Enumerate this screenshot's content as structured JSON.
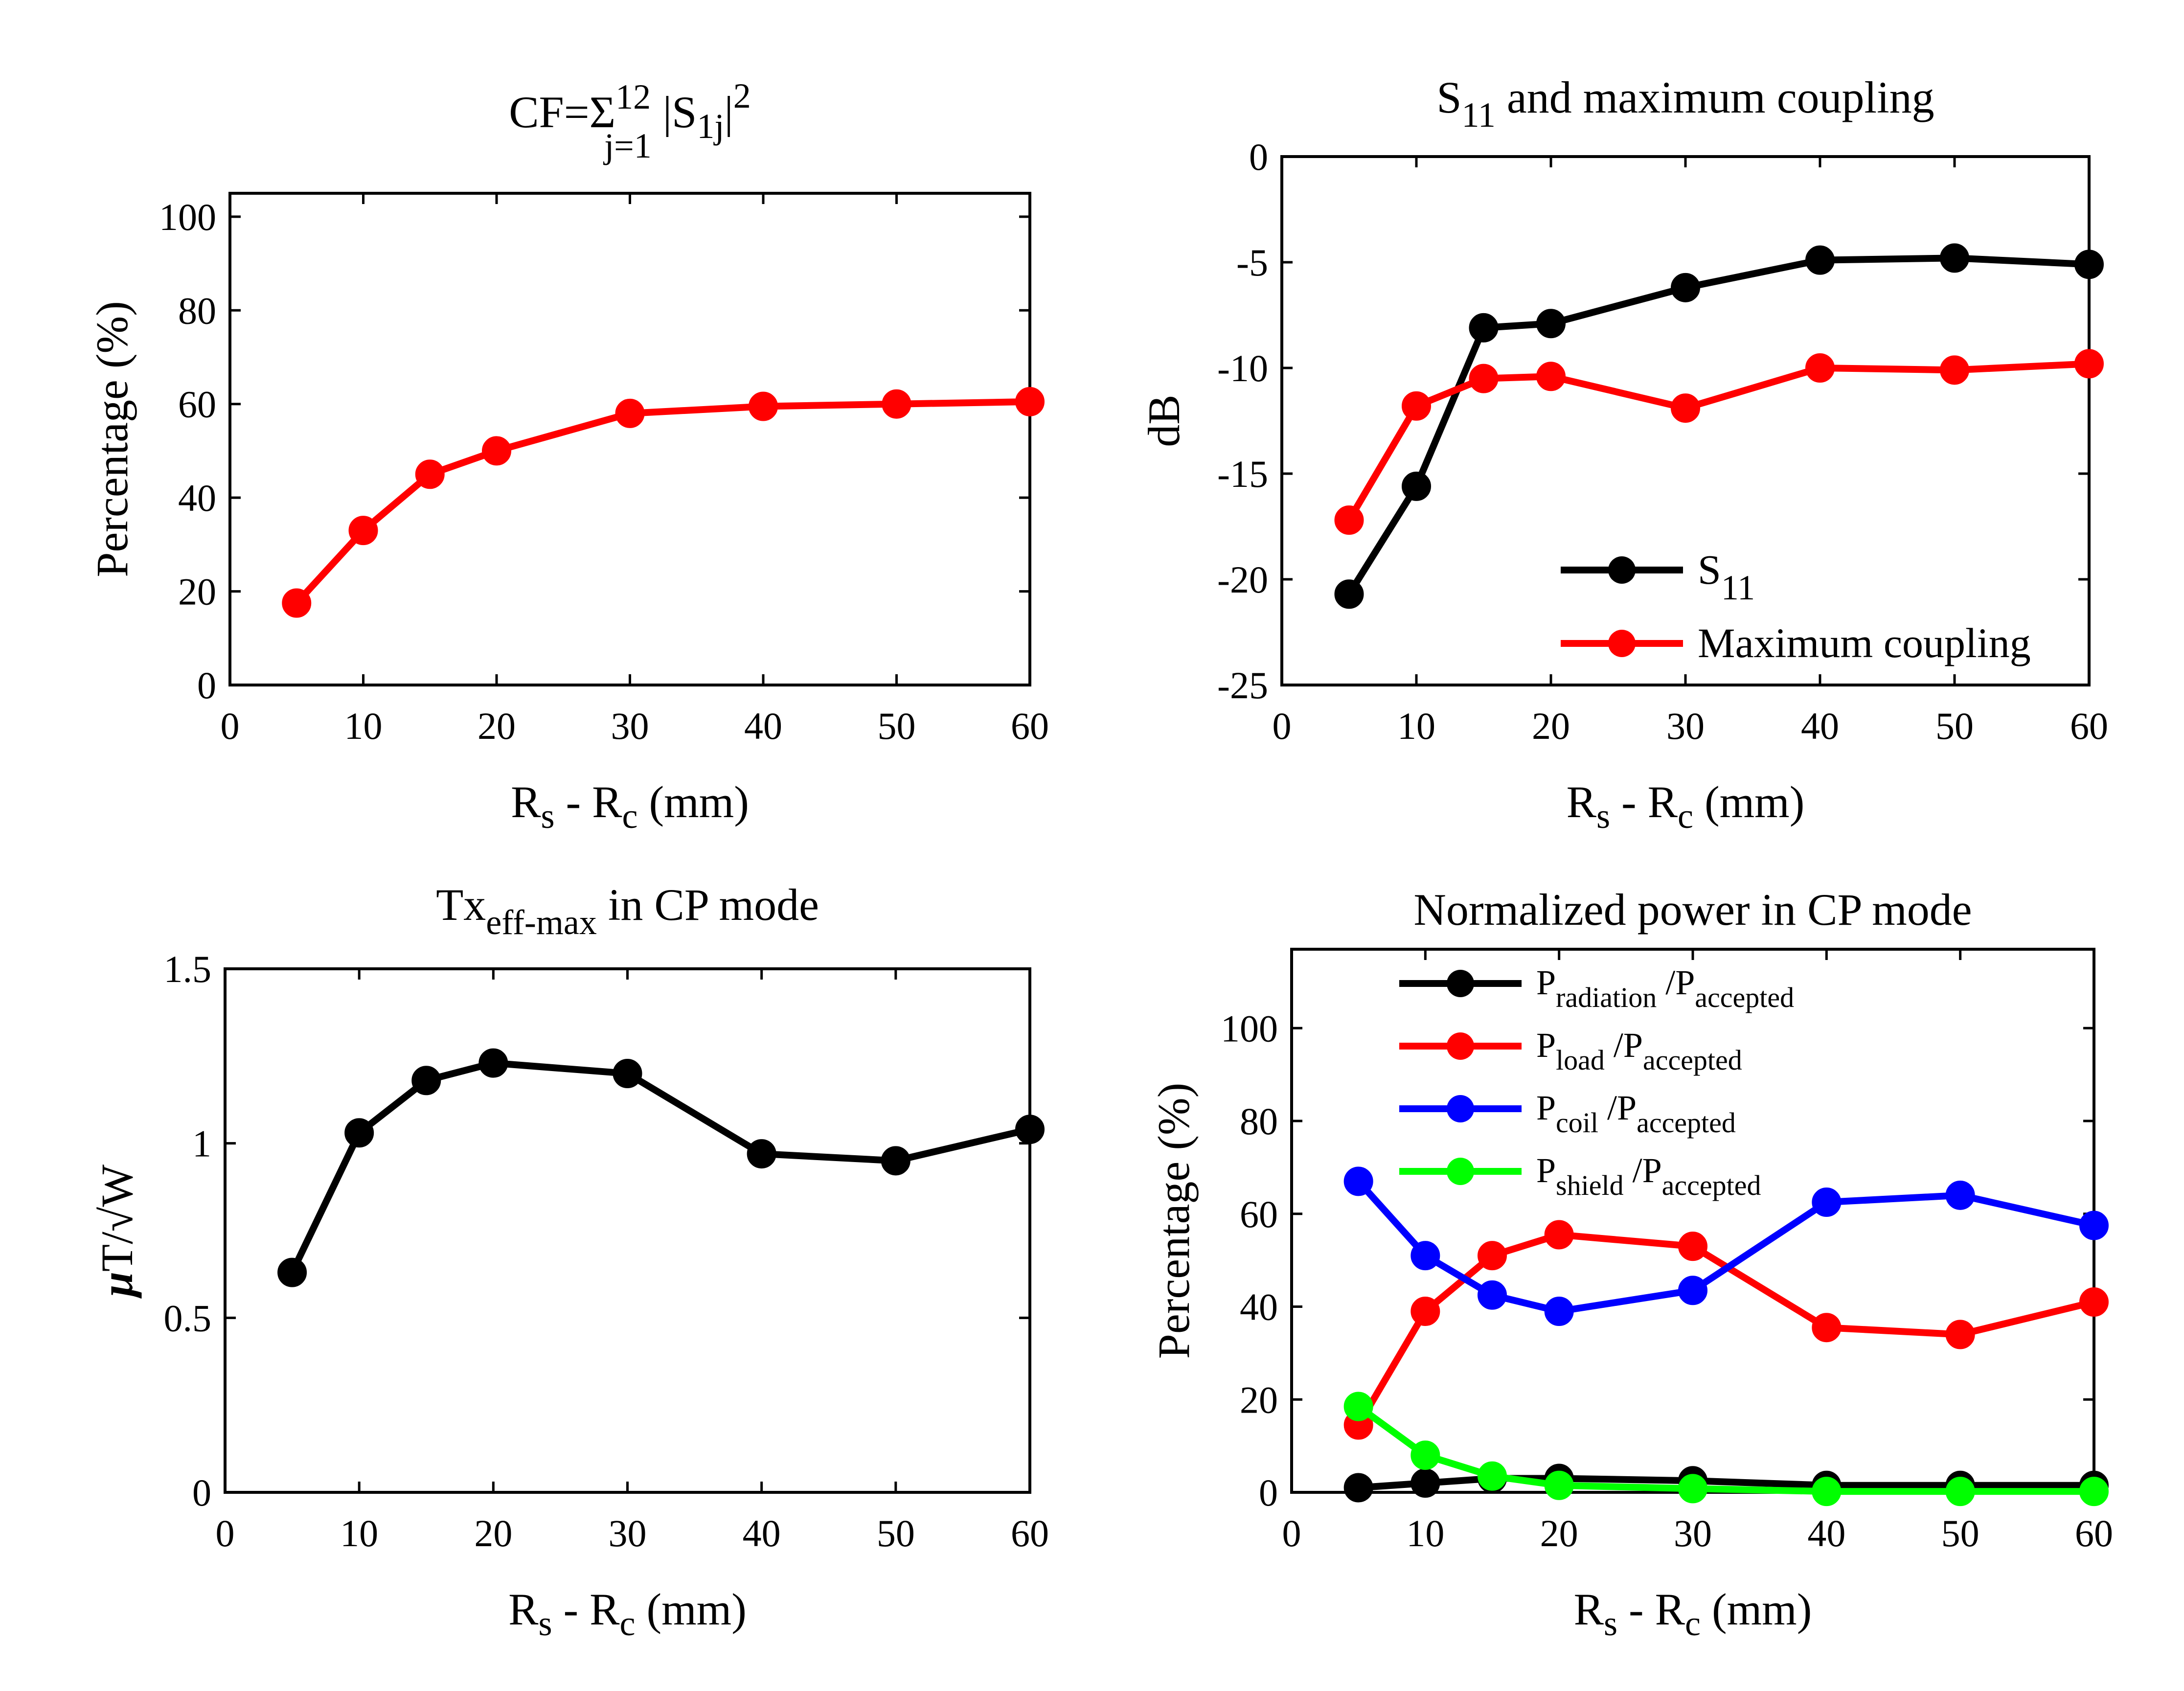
{
  "chart_data": [
    {
      "id": "cf",
      "type": "line",
      "title": "CF=Σ",
      "title_sup": "12",
      "title_sub": "j=1",
      "title_tail": " |S",
      "title_tail_sub": "1j",
      "title_tail_end": "|",
      "title_tail_sup": "2",
      "xlabel": {
        "main": "R",
        "sub1": "s",
        "mid": " - R",
        "sub2": "c",
        "tail": " (mm)"
      },
      "ylabel": "Percentage (%)",
      "xlim": [
        0,
        60
      ],
      "ylim": [
        0,
        105
      ],
      "xticks": [
        0,
        10,
        20,
        30,
        40,
        50,
        60
      ],
      "yticks": [
        0,
        20,
        40,
        60,
        80,
        100
      ],
      "series": [
        {
          "name": "CF",
          "color": "#ff0000",
          "x": [
            5,
            10,
            15,
            20,
            30,
            40,
            50,
            60
          ],
          "values": [
            17.5,
            33,
            45,
            50,
            58,
            59.5,
            60,
            60.5
          ]
        }
      ]
    },
    {
      "id": "s11",
      "type": "line",
      "title_main": "S",
      "title_sub": "11",
      "title_tail": " and maximum coupling",
      "xlabel": {
        "main": "R",
        "sub1": "s",
        "mid": " - R",
        "sub2": "c",
        "tail": " (mm)"
      },
      "ylabel": "dB",
      "xlim": [
        0,
        60
      ],
      "ylim": [
        -25,
        0
      ],
      "xticks": [
        0,
        10,
        20,
        30,
        40,
        50,
        60
      ],
      "yticks": [
        -25,
        -20,
        -15,
        -10,
        -5,
        0
      ],
      "series": [
        {
          "name": "S",
          "name_sub": "11",
          "color": "#000000",
          "x": [
            5,
            10,
            15,
            20,
            30,
            40,
            50,
            60
          ],
          "values": [
            -20.7,
            -15.6,
            -8.1,
            -7.9,
            -6.2,
            -4.9,
            -4.8,
            -5.1
          ]
        },
        {
          "name": "Maximum coupling",
          "name_sub": "",
          "color": "#ff0000",
          "x": [
            5,
            10,
            15,
            20,
            30,
            40,
            50,
            60
          ],
          "values": [
            -17.2,
            -11.8,
            -10.5,
            -10.4,
            -11.9,
            -10,
            -10.1,
            -9.8
          ]
        }
      ],
      "legend_position": "bottom-right"
    },
    {
      "id": "tx",
      "type": "line",
      "title_main": "Tx",
      "title_sub": "eff-max",
      "title_tail": " in CP mode",
      "xlabel": {
        "main": "R",
        "sub1": "s",
        "mid": " - R",
        "sub2": "c",
        "tail": " (mm)"
      },
      "ylabel_mu": "μ",
      "ylabel_rest": "T/√W",
      "xlim": [
        0,
        60
      ],
      "ylim": [
        0,
        1.5
      ],
      "xticks": [
        0,
        10,
        20,
        30,
        40,
        50,
        60
      ],
      "yticks": [
        0,
        0.5,
        1,
        1.5
      ],
      "ytick_labels": [
        "0",
        "0.5",
        "1",
        "1.5"
      ],
      "series": [
        {
          "name": "Tx eff-max",
          "color": "#000000",
          "x": [
            5,
            10,
            15,
            20,
            30,
            40,
            50,
            60
          ],
          "values": [
            0.63,
            1.03,
            1.18,
            1.23,
            1.2,
            0.97,
            0.95,
            1.04
          ]
        }
      ]
    },
    {
      "id": "power",
      "type": "line",
      "title": "Normalized power in CP mode",
      "xlabel": {
        "main": "R",
        "sub1": "s",
        "mid": " - R",
        "sub2": "c",
        "tail": " (mm)"
      },
      "ylabel": "Percentage (%)",
      "xlim": [
        0,
        60
      ],
      "ylim": [
        0,
        117
      ],
      "xticks": [
        0,
        10,
        20,
        30,
        40,
        50,
        60
      ],
      "yticks": [
        0,
        20,
        40,
        60,
        80,
        100
      ],
      "series": [
        {
          "name": "P",
          "name_sub": "radiation",
          "name_mid": " /P",
          "name_sub2": "accepted",
          "color": "#000000",
          "x": [
            5,
            10,
            15,
            20,
            30,
            40,
            50,
            60
          ],
          "values": [
            1,
            2,
            3,
            3,
            2.5,
            1.5,
            1.5,
            1.5
          ]
        },
        {
          "name": "P",
          "name_sub": "load",
          "name_mid": " /P",
          "name_sub2": "accepted",
          "color": "#ff0000",
          "x": [
            5,
            10,
            15,
            20,
            30,
            40,
            50,
            60
          ],
          "values": [
            14.5,
            39,
            51,
            55.5,
            53,
            35.5,
            34,
            41
          ]
        },
        {
          "name": "P",
          "name_sub": "coil",
          "name_mid": " /P",
          "name_sub2": "accepted",
          "color": "#0000ff",
          "x": [
            5,
            10,
            15,
            20,
            30,
            40,
            50,
            60
          ],
          "values": [
            67,
            51,
            42.5,
            39,
            43.5,
            62.5,
            64,
            57.5
          ]
        },
        {
          "name": "P",
          "name_sub": "shield",
          "name_mid": " /P",
          "name_sub2": "accepted",
          "color": "#00ff00",
          "x": [
            5,
            10,
            15,
            20,
            30,
            40,
            50,
            60
          ],
          "values": [
            18.5,
            8,
            3.5,
            1.5,
            0.8,
            0.2,
            0.2,
            0.2
          ]
        }
      ],
      "legend_position": "top-center"
    }
  ]
}
